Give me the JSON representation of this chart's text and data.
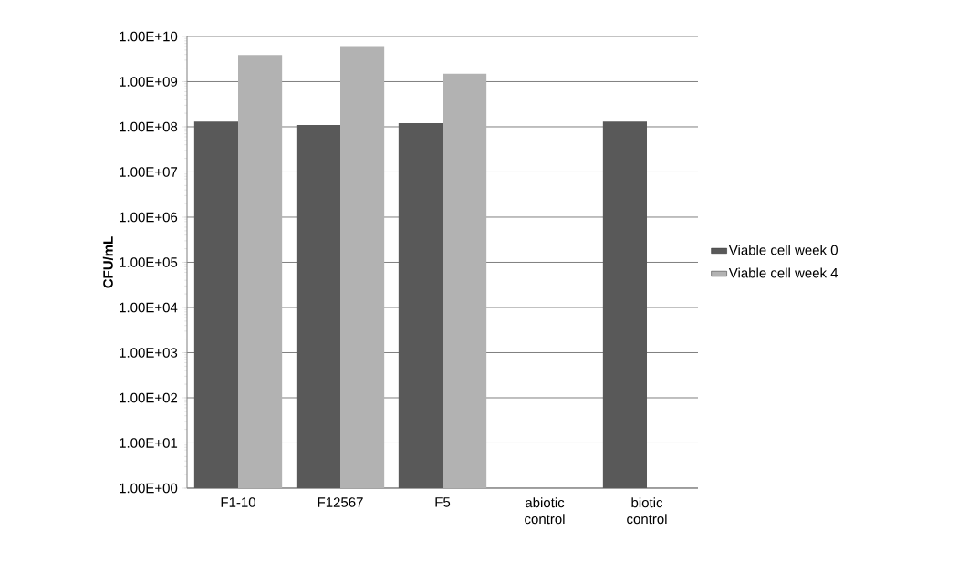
{
  "chart_data": {
    "type": "bar",
    "ylabel": "CFU/mL",
    "log": "y",
    "grid": "y",
    "legend": "right",
    "categories": [
      "F1-10",
      "F12567",
      "F5",
      "abiotic control",
      "biotic control"
    ],
    "ylim": [
      1,
      10000000000
    ],
    "yticks": [
      {
        "value": 1,
        "label": "1.00E+00"
      },
      {
        "value": 10,
        "label": "1.00E+01"
      },
      {
        "value": 100,
        "label": "1.00E+02"
      },
      {
        "value": 1000,
        "label": "1.00E+03"
      },
      {
        "value": 10000,
        "label": "1.00E+04"
      },
      {
        "value": 100000,
        "label": "1.00E+05"
      },
      {
        "value": 1000000,
        "label": "1.00E+06"
      },
      {
        "value": 10000000,
        "label": "1.00E+07"
      },
      {
        "value": 100000000,
        "label": "1.00E+08"
      },
      {
        "value": 1000000000,
        "label": "1.00E+09"
      },
      {
        "value": 10000000000,
        "label": "1.00E+10"
      }
    ],
    "series": [
      {
        "name": "Viable cell week 0",
        "color": "#595959",
        "values": [
          130000000,
          110000000,
          120000000,
          null,
          130000000
        ]
      },
      {
        "name": "Viable cell week 4",
        "color": "#b2b2b2",
        "values": [
          3900000000,
          6100000000,
          1500000000,
          null,
          null
        ]
      }
    ]
  }
}
